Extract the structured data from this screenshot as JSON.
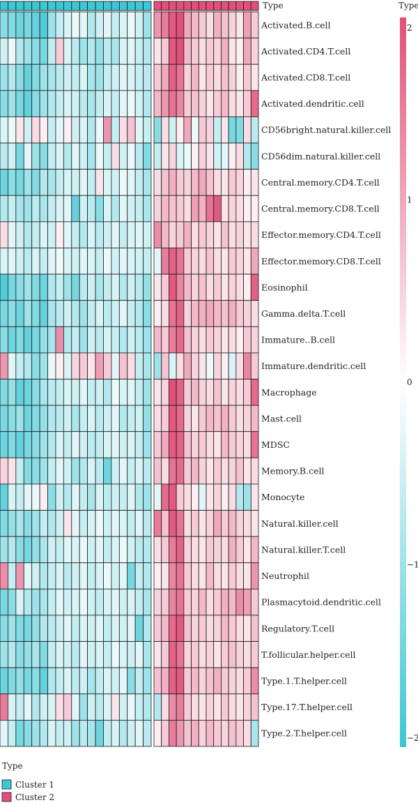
{
  "chart_data": {
    "type": "heatmap",
    "annotation_title": "Type",
    "legend_title": "Type",
    "colorbar_title": "Type",
    "color_scale": {
      "min": -2,
      "max": 2,
      "low": "#3ec6d4",
      "mid": "#ffffff",
      "high": "#e0507a"
    },
    "colorbar_ticks": [
      "2",
      "1",
      "0",
      "−1",
      "−2"
    ],
    "colorbar_tick_values": [
      2,
      1,
      0,
      -1,
      -2
    ],
    "clusters": [
      {
        "name": "Cluster 1",
        "color": "#3ec6d4",
        "columns": 19
      },
      {
        "name": "Cluster 2",
        "color": "#e0507a",
        "columns": 14
      }
    ],
    "rows": [
      {
        "label": "Activated.B.cell",
        "values": [
          -1.2,
          -1.3,
          -1.5,
          -1.4,
          -1.6,
          -1.8,
          -1.0,
          -0.6,
          -0.4,
          -0.2,
          -0.3,
          -0.8,
          -0.5,
          -0.3,
          -0.6,
          -0.4,
          -0.2,
          -0.5,
          -1.0,
          1.2,
          1.5,
          1.9,
          2.0,
          1.0,
          0.8,
          0.6,
          0.4,
          0.9,
          0.7,
          0.5,
          0.3,
          1.1,
          0.6
        ]
      },
      {
        "label": "Activated.CD4.T.cell",
        "values": [
          -0.5,
          -0.2,
          -0.8,
          -1.0,
          -1.2,
          -1.4,
          -0.6,
          0.6,
          -0.4,
          -0.7,
          -1.0,
          -0.8,
          -1.1,
          -0.7,
          -0.9,
          -0.4,
          -0.3,
          -0.6,
          -0.8,
          0.3,
          0.6,
          1.9,
          2.0,
          0.8,
          0.6,
          0.4,
          0.6,
          0.5,
          0.9,
          0.3,
          0.2,
          1.0,
          0.5
        ]
      },
      {
        "label": "Activated.CD8.T.cell",
        "values": [
          -1.0,
          -0.8,
          -1.2,
          -1.6,
          -1.3,
          -1.0,
          -0.9,
          -0.7,
          -0.5,
          -0.6,
          -0.4,
          -0.9,
          -1.0,
          -0.6,
          -0.5,
          -0.3,
          -0.4,
          -0.6,
          -0.7,
          0.6,
          1.0,
          1.8,
          1.6,
          0.5,
          0.8,
          0.3,
          0.6,
          0.4,
          0.7,
          0.5,
          0.2,
          0.6,
          0.3
        ]
      },
      {
        "label": "Activated.dendritic.cell",
        "values": [
          -1.2,
          -1.0,
          -1.4,
          -1.6,
          -1.2,
          -1.0,
          -0.8,
          -0.6,
          -0.4,
          -0.5,
          -0.7,
          -0.9,
          -0.6,
          -0.4,
          -0.6,
          -0.3,
          -0.2,
          -0.5,
          -0.8,
          0.8,
          1.2,
          1.6,
          1.4,
          0.6,
          0.7,
          0.5,
          0.3,
          0.6,
          0.8,
          0.4,
          0.3,
          0.6,
          1.7
        ]
      },
      {
        "label": "CD56bright.natural.killer.cell",
        "values": [
          -0.4,
          -0.2,
          0.3,
          -0.5,
          0.4,
          0.2,
          -0.6,
          -0.3,
          0.2,
          -0.5,
          -0.4,
          -0.8,
          -0.2,
          1.2,
          -0.6,
          0.4,
          0.7,
          -0.3,
          -0.6,
          -1.2,
          0.4,
          -0.5,
          0.2,
          1.0,
          -0.2,
          0.6,
          0.5,
          -0.6,
          0.3,
          -1.4,
          -1.3,
          0.4,
          -0.7
        ]
      },
      {
        "label": "CD56dim.natural.killer.cell",
        "values": [
          -0.7,
          -0.5,
          -1.4,
          -0.3,
          -1.0,
          -1.2,
          -0.6,
          -0.4,
          -0.8,
          -0.3,
          -0.5,
          -0.9,
          -0.2,
          -0.6,
          0.4,
          -0.5,
          -0.2,
          -0.7,
          -1.3,
          -0.6,
          0.3,
          0.5,
          -0.4,
          -0.2,
          0.2,
          0.5,
          0.3,
          -0.5,
          -0.3,
          0.2,
          0.4,
          -0.8,
          -1.2
        ]
      },
      {
        "label": "Central.memory.CD4.T.cell",
        "values": [
          -1.5,
          -1.2,
          -1.4,
          -1.0,
          -1.3,
          -0.8,
          -0.9,
          -0.6,
          -0.4,
          -0.5,
          -0.3,
          -0.6,
          0.3,
          -0.4,
          -0.5,
          -0.2,
          -0.3,
          -0.6,
          -0.9,
          0.4,
          0.7,
          0.9,
          0.6,
          0.5,
          0.8,
          1.0,
          0.7,
          0.4,
          0.3,
          0.6,
          0.5,
          0.2,
          0.3
        ]
      },
      {
        "label": "Central.memory.CD8.T.cell",
        "values": [
          -0.8,
          -0.6,
          -0.9,
          -1.0,
          -0.7,
          -0.9,
          -0.6,
          -0.4,
          -0.3,
          -1.6,
          -0.5,
          -0.7,
          -1.2,
          -0.4,
          -0.8,
          -0.3,
          -0.5,
          -0.6,
          -0.9,
          0.5,
          0.8,
          0.7,
          0.6,
          0.4,
          1.1,
          0.9,
          1.6,
          1.9,
          0.3,
          0.5,
          0.4,
          0.2,
          0.2
        ]
      },
      {
        "label": "Effector.memory.CD4.T.cell",
        "values": [
          0.4,
          -0.3,
          -0.5,
          -0.8,
          -0.6,
          -0.4,
          -0.5,
          0.2,
          -0.3,
          -0.6,
          -0.8,
          -0.4,
          -0.7,
          -0.5,
          -0.3,
          -0.6,
          -0.4,
          -0.3,
          -0.5,
          1.3,
          0.8,
          0.5,
          0.6,
          0.9,
          0.4,
          0.6,
          0.5,
          0.3,
          0.7,
          0.4,
          0.5,
          0.3,
          0.4
        ]
      },
      {
        "label": "Effector.memory.CD8.T.cell",
        "values": [
          -0.4,
          -0.3,
          -0.5,
          -0.7,
          -0.4,
          -0.6,
          -0.3,
          -0.2,
          -0.4,
          -0.5,
          -0.3,
          -0.4,
          -0.6,
          -0.2,
          -0.5,
          -0.3,
          -0.4,
          -0.5,
          -0.6,
          -0.3,
          1.5,
          1.8,
          1.6,
          0.6,
          0.5,
          0.4,
          0.7,
          0.4,
          0.3,
          0.6,
          0.5,
          0.3,
          1.0
        ]
      },
      {
        "label": "Eosinophil",
        "values": [
          -1.8,
          -1.4,
          -1.2,
          -1.0,
          -1.3,
          -1.5,
          -0.8,
          -0.6,
          -1.0,
          -1.4,
          -0.7,
          -0.5,
          -0.9,
          -0.6,
          -0.4,
          -0.8,
          -0.5,
          -0.7,
          -1.1,
          0.3,
          0.6,
          1.9,
          1.4,
          0.8,
          0.5,
          0.7,
          0.4,
          0.6,
          0.3,
          0.5,
          0.4,
          0.2,
          1.8
        ]
      },
      {
        "label": "Gamma.delta.T.cell",
        "values": [
          -1.4,
          -1.2,
          -1.5,
          -1.0,
          -1.3,
          -1.6,
          -0.9,
          -0.7,
          -0.5,
          -0.8,
          -1.0,
          -0.6,
          -0.4,
          -0.7,
          -0.5,
          -0.3,
          -0.6,
          -0.8,
          -1.2,
          0.2,
          0.4,
          1.6,
          1.8,
          0.5,
          0.8,
          0.9,
          1.0,
          0.8,
          0.7,
          0.9,
          0.6,
          0.5,
          0.4
        ]
      },
      {
        "label": "Immature..B.cell",
        "values": [
          -1.2,
          -1.5,
          -1.3,
          -1.6,
          -1.4,
          -1.1,
          -0.9,
          1.3,
          -0.8,
          -0.6,
          -1.0,
          -0.5,
          -0.7,
          -0.4,
          -0.6,
          -0.8,
          -0.5,
          -0.7,
          -1.0,
          0.8,
          0.6,
          1.5,
          1.7,
          0.7,
          0.5,
          0.4,
          0.6,
          0.5,
          0.3,
          0.4,
          0.2,
          0.6,
          0.5
        ]
      },
      {
        "label": "Immature.dendritic.cell",
        "values": [
          1.2,
          -0.3,
          -0.6,
          -0.8,
          -1.2,
          -1.0,
          -0.2,
          0.2,
          -0.4,
          0.5,
          0.6,
          0.3,
          1.1,
          0.6,
          -0.3,
          0.7,
          0.4,
          -0.6,
          -0.9,
          -1.0,
          0.7,
          -0.4,
          0.4,
          1.0,
          0.5,
          0.3,
          -0.2,
          0.5,
          0.2,
          -0.4,
          0.4,
          1.4,
          0.6
        ]
      },
      {
        "label": "Macrophage",
        "values": [
          -1.3,
          -1.1,
          -1.6,
          -1.5,
          -1.2,
          -0.9,
          -0.7,
          -0.6,
          -0.4,
          -0.5,
          -0.3,
          -0.6,
          -0.5,
          -0.8,
          -0.2,
          -0.4,
          -0.3,
          -0.6,
          -1.0,
          0.3,
          0.5,
          2.0,
          1.8,
          0.6,
          0.8,
          0.5,
          0.4,
          0.7,
          0.3,
          0.5,
          0.4,
          0.6,
          1.7
        ]
      },
      {
        "label": "Mast.cell",
        "values": [
          -1.4,
          -1.2,
          -1.0,
          -1.5,
          -1.3,
          -1.1,
          -0.8,
          -0.7,
          -0.5,
          -0.9,
          -0.6,
          -0.4,
          -0.7,
          -0.5,
          -0.3,
          -0.8,
          -0.6,
          -0.5,
          -1.1,
          0.4,
          0.6,
          1.9,
          1.7,
          0.5,
          0.3,
          0.6,
          0.8,
          0.7,
          0.9,
          0.6,
          0.4,
          0.5,
          0.8
        ]
      },
      {
        "label": "MDSC",
        "values": [
          -1.5,
          -1.3,
          -1.6,
          -1.4,
          -1.2,
          -1.0,
          -0.8,
          -0.4,
          -0.6,
          -0.3,
          -0.5,
          -0.7,
          -0.6,
          -0.4,
          -0.3,
          -0.5,
          -0.4,
          -0.6,
          -1.0,
          0.6,
          1.0,
          1.9,
          1.8,
          0.7,
          0.5,
          0.6,
          0.4,
          0.3,
          0.8,
          0.6,
          0.5,
          0.4,
          1.6
        ]
      },
      {
        "label": "Memory.B.cell",
        "values": [
          0.5,
          0.3,
          -0.6,
          -1.3,
          -1.2,
          -1.0,
          -0.6,
          -0.3,
          -0.5,
          -1.0,
          -0.8,
          -0.4,
          -0.7,
          -1.5,
          -0.5,
          -0.3,
          -0.6,
          -0.4,
          -0.7,
          0.7,
          0.4,
          1.6,
          1.7,
          0.6,
          0.8,
          0.5,
          0.3,
          0.6,
          0.4,
          0.5,
          0.7,
          0.3,
          0.4
        ]
      },
      {
        "label": "Monocyte",
        "values": [
          -1.6,
          -0.4,
          -0.6,
          -0.3,
          -0.2,
          0.2,
          -1.2,
          -0.5,
          -0.8,
          -0.3,
          -0.6,
          -0.9,
          -0.4,
          -0.7,
          -0.5,
          -0.6,
          -0.3,
          -0.8,
          -1.0,
          -0.3,
          1.7,
          1.9,
          0.6,
          0.4,
          0.2,
          -0.3,
          0.3,
          0.5,
          0.2,
          0.4,
          -0.8,
          -1.0,
          0.3
        ]
      },
      {
        "label": "Natural.killer.cell",
        "values": [
          -1.3,
          -1.1,
          -0.9,
          -1.2,
          -1.0,
          -0.6,
          -0.8,
          -0.5,
          0.3,
          -0.3,
          -0.6,
          -0.4,
          -0.2,
          -0.5,
          -0.3,
          -0.4,
          -0.6,
          -0.3,
          -0.7,
          1.5,
          0.7,
          1.9,
          1.6,
          0.4,
          0.6,
          0.3,
          0.5,
          1.0,
          0.6,
          0.8,
          0.5,
          0.4,
          0.3
        ]
      },
      {
        "label": "Natural.killer.T.cell",
        "values": [
          -1.0,
          -0.8,
          -1.2,
          -1.4,
          -1.1,
          -0.9,
          -0.5,
          -0.6,
          -0.3,
          -0.4,
          -0.2,
          -0.5,
          -0.3,
          -0.6,
          -0.4,
          -0.2,
          -0.5,
          -0.7,
          -0.8,
          0.4,
          0.6,
          1.5,
          1.8,
          0.5,
          0.4,
          0.3,
          0.6,
          0.5,
          0.4,
          0.9,
          0.6,
          0.3,
          0.8
        ]
      },
      {
        "label": "Neutrophil",
        "values": [
          1.3,
          -0.6,
          1.2,
          -0.3,
          -0.5,
          -0.8,
          -0.6,
          -0.4,
          -0.7,
          -0.5,
          -0.3,
          -0.6,
          -0.4,
          -0.2,
          -0.5,
          -0.3,
          -1.4,
          -0.6,
          -0.8,
          0.2,
          0.3,
          1.4,
          1.6,
          0.6,
          0.4,
          0.3,
          0.8,
          0.4,
          0.3,
          0.6,
          0.4,
          0.3,
          1.2
        ]
      },
      {
        "label": "Plasmacytoid.dendritic.cell",
        "values": [
          -1.4,
          -1.2,
          -0.4,
          -0.8,
          -1.0,
          -0.9,
          -0.6,
          -0.3,
          -0.5,
          -0.4,
          -0.2,
          -0.5,
          -0.6,
          -0.4,
          -0.3,
          -0.5,
          -0.4,
          -0.6,
          -0.9,
          0.5,
          0.6,
          1.4,
          1.6,
          0.6,
          0.5,
          0.8,
          0.4,
          0.6,
          0.9,
          0.8,
          1.3,
          1.1,
          0.6
        ]
      },
      {
        "label": "Regulatory.T.cell",
        "values": [
          -1.2,
          -1.0,
          -1.3,
          -1.4,
          -1.1,
          -0.8,
          -0.7,
          -0.5,
          -0.3,
          -0.6,
          -0.4,
          -0.5,
          -0.3,
          -0.6,
          -0.4,
          -0.5,
          -0.3,
          -1.5,
          -0.8,
          0.6,
          0.8,
          1.7,
          1.9,
          0.7,
          0.5,
          0.6,
          0.4,
          0.5,
          0.8,
          0.6,
          0.4,
          0.3,
          0.7
        ]
      },
      {
        "label": "T.follicular.helper.cell",
        "values": [
          -1.0,
          -0.8,
          -1.2,
          -1.1,
          -0.9,
          -1.3,
          -0.6,
          -0.4,
          -0.5,
          -0.7,
          -0.3,
          -0.5,
          -0.4,
          -0.6,
          -0.2,
          -0.4,
          -0.5,
          -0.3,
          -0.9,
          0.3,
          0.6,
          1.8,
          1.6,
          0.5,
          0.6,
          0.4,
          0.5,
          0.3,
          0.6,
          0.7,
          0.5,
          0.4,
          0.6
        ]
      },
      {
        "label": "Type.1.T.helper.cell",
        "values": [
          -1.5,
          -1.3,
          -1.1,
          -1.4,
          -1.2,
          -1.6,
          -0.8,
          -0.6,
          -0.4,
          -0.7,
          -0.5,
          -0.9,
          -0.6,
          -0.4,
          -0.5,
          -0.3,
          -1.2,
          -0.6,
          -1.0,
          0.7,
          0.9,
          1.8,
          1.9,
          0.6,
          0.8,
          0.5,
          0.7,
          0.9,
          0.6,
          0.5,
          0.4,
          0.6,
          1.3
        ]
      },
      {
        "label": "Type.17.T.helper.cell",
        "values": [
          1.5,
          -0.4,
          -0.6,
          -0.3,
          -0.8,
          -0.5,
          -0.4,
          0.4,
          0.6,
          -0.3,
          -1.0,
          -0.5,
          -0.7,
          -0.4,
          0.3,
          -0.5,
          -0.2,
          -0.6,
          -0.8,
          -0.8,
          0.4,
          1.3,
          1.5,
          0.6,
          0.4,
          0.3,
          0.5,
          0.3,
          0.6,
          0.4,
          0.3,
          0.5,
          0.7
        ]
      },
      {
        "label": "Type.2.T.helper.cell",
        "values": [
          -0.3,
          -0.6,
          -1.4,
          -1.2,
          -1.0,
          -0.8,
          -0.4,
          -0.6,
          -0.5,
          -1.0,
          -0.7,
          -0.9,
          -1.5,
          -0.6,
          -0.4,
          -0.8,
          -0.5,
          -0.3,
          -0.7,
          0.2,
          0.6,
          1.5,
          1.2,
          0.7,
          0.9,
          0.5,
          0.8,
          0.6,
          0.5,
          0.7,
          0.6,
          0.4,
          -0.9
        ]
      }
    ]
  }
}
